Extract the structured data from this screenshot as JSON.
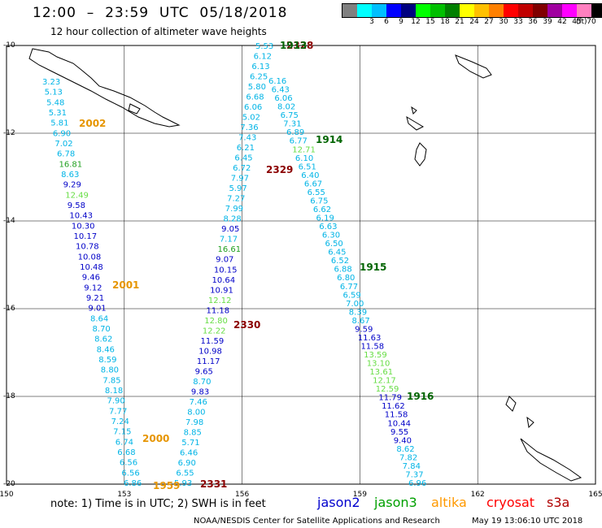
{
  "header": {
    "title": "12:00  –  23:59  UTC  05/18/2018",
    "subtitle": "12 hour collection of altimeter wave heights"
  },
  "scale": {
    "colors": [
      "#808080",
      "#00ffff",
      "#00bfff",
      "#0000ff",
      "#000080",
      "#00ff00",
      "#00c000",
      "#008000",
      "#ffff00",
      "#ffc000",
      "#ff8000",
      "#ff0000",
      "#c00000",
      "#800000",
      "#a000a0",
      "#ff00ff",
      "#ff80c0",
      "#000000"
    ],
    "ticks": [
      "3",
      "6",
      "9",
      "12",
      "15",
      "18",
      "21",
      "24",
      "27",
      "30",
      "33",
      "36",
      "39",
      "42",
      "45",
      "70"
    ],
    "unit": "(ft)"
  },
  "axes": {
    "lat_labels": [
      "-10",
      "-12",
      "-14",
      "-16",
      "-18",
      "-20"
    ],
    "lon_labels": [
      "150",
      "153",
      "156",
      "159",
      "162",
      "165"
    ]
  },
  "passes": [
    {
      "time": "2002",
      "color": "#e69500"
    },
    {
      "time": "2001",
      "color": "#e69500"
    },
    {
      "time": "2000",
      "color": "#e69500"
    },
    {
      "time": "1959",
      "color": "#e69500"
    },
    {
      "time": "2329",
      "color": "#8b0000"
    },
    {
      "time": "2330",
      "color": "#8b0000"
    },
    {
      "time": "2331",
      "color": "#8b0000"
    },
    {
      "time": "2328",
      "color": "#8b0000"
    },
    {
      "time": "1913",
      "color": "#006400"
    },
    {
      "time": "1914",
      "color": "#006400"
    },
    {
      "time": "1915",
      "color": "#006400"
    },
    {
      "time": "1916",
      "color": "#006400"
    }
  ],
  "tracks": {
    "altika": [
      "3.23",
      "5.13",
      "5.48",
      "5.31",
      "5.81",
      "6.90",
      "7.02",
      "6.78",
      "16.81",
      "8.63",
      "9.29",
      "12.49",
      "9.58",
      "10.43",
      "10.30",
      "10.17",
      "10.78",
      "10.08",
      "10.48",
      "9.46",
      "9.12",
      "9.21",
      "9.01",
      "8.64",
      "8.70",
      "8.62",
      "8.46",
      "8.59",
      "8.80",
      "7.85",
      "8.18",
      "7.90",
      "7.77",
      "7.24",
      "7.15",
      "6.74",
      "6.68",
      "6.56",
      "6.56",
      "6.86"
    ],
    "s3a": [
      "5.53",
      "6.12",
      "6.13",
      "6.25",
      "5.80",
      "6.68",
      "6.06",
      "5.02",
      "7.36",
      "7.43",
      "6.21",
      "6.45",
      "6.72",
      "7.97",
      "5.97",
      "7.27",
      "7.99",
      "8.28",
      "9.05",
      "7.17",
      "16.61",
      "9.07",
      "10.15",
      "10.64",
      "10.91",
      "12.12",
      "11.18",
      "12.80",
      "12.22",
      "11.59",
      "10.98",
      "11.17",
      "9.65",
      "8.70",
      "9.83",
      "7.46",
      "8.00",
      "7.98",
      "8.85",
      "5.71",
      "6.46",
      "6.90",
      "6.55",
      "5.93"
    ],
    "jason3": [
      "6.16",
      "6.43",
      "6.06",
      "8.02",
      "6.75",
      "7.31",
      "6.89",
      "6.77",
      "12.71",
      "6.10",
      "6.51",
      "6.40",
      "6.67",
      "6.55",
      "6.75",
      "6.62",
      "6.19",
      "6.63",
      "6.30",
      "6.50",
      "6.45",
      "6.52",
      "6.88",
      "6.80",
      "6.77",
      "6.59",
      "7.00",
      "8.39",
      "8.67",
      "9.59",
      "11.63",
      "11.58",
      "13.59",
      "13.10",
      "13.61",
      "12.17",
      "12.59",
      "11.79",
      "11.62",
      "11.58",
      "10.44",
      "9.55",
      "9.40",
      "8.62",
      "7.82",
      "7.84",
      "7.37",
      "6.96"
    ]
  },
  "note": "note:  1) Time is in UTC;  2) SWH is in feet",
  "legend": [
    {
      "label": "jason2",
      "color": "#0000cd"
    },
    {
      "label": "jason3",
      "color": "#00a000"
    },
    {
      "label": "altika",
      "color": "#ff9900"
    },
    {
      "label": "cryosat",
      "color": "#ff0000"
    },
    {
      "label": "s3a",
      "color": "#b00000"
    }
  ],
  "credit": "NOAA/NESDIS Center for Satellite Applications and Research",
  "timestamp": "May 19 13:06:10 UTC 2018"
}
